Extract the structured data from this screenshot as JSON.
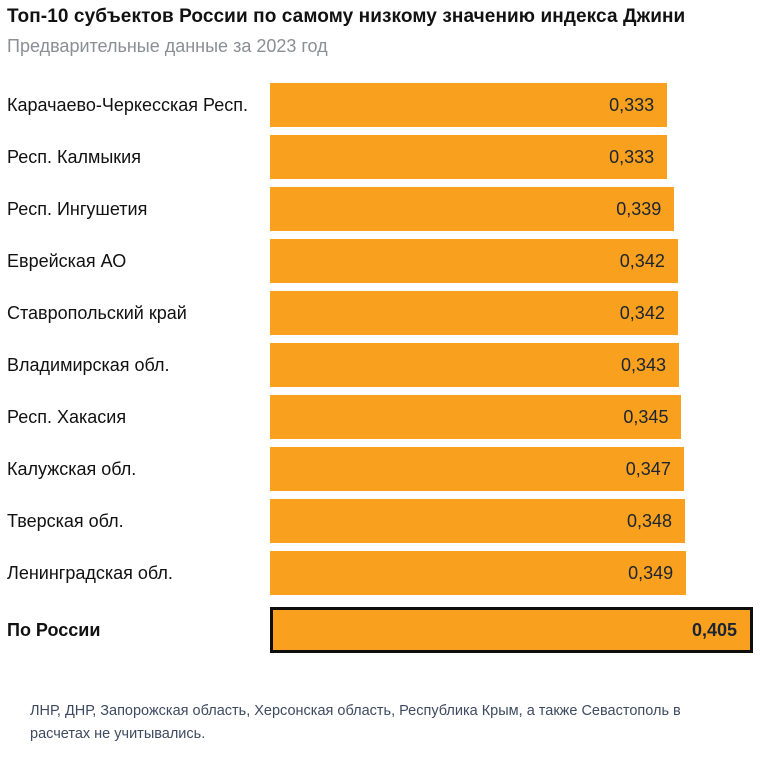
{
  "header": {
    "title": "Топ-10 субъектов России по самому низкому значению индекса Джини",
    "subtitle": "Предварительные данные за 2023 год"
  },
  "chart_data": {
    "type": "bar",
    "orientation": "horizontal",
    "title": "Топ-10 субъектов России по самому низкому значению индекса Джини",
    "subtitle": "Предварительные данные за 2023 год",
    "xlabel": "",
    "ylabel": "",
    "xlim": [
      0,
      0.405
    ],
    "grid": false,
    "legend": false,
    "bar_color": "#f9a11e",
    "highlight_border_color": "#0e0e0e",
    "categories": [
      "Карачаево-Черкесская Респ.",
      "Респ. Калмыкия",
      "Респ. Ингушетия",
      "Еврейская АО",
      "Ставропольский край",
      "Владимирская обл.",
      "Респ. Хакасия",
      "Калужская обл.",
      "Тверская обл.",
      "Ленинградская обл.",
      "По России"
    ],
    "values": [
      0.333,
      0.333,
      0.339,
      0.342,
      0.342,
      0.343,
      0.345,
      0.347,
      0.348,
      0.349,
      0.405
    ],
    "value_labels": [
      "0,333",
      "0,333",
      "0,339",
      "0,342",
      "0,342",
      "0,343",
      "0,345",
      "0,347",
      "0,348",
      "0,349",
      "0,405"
    ],
    "highlight_index": 10
  },
  "footnote": "ЛНР, ДНР, Запорожская область, Херсонская область, Республика Крым, а также Севасто­поль в расчетах не учитывались."
}
